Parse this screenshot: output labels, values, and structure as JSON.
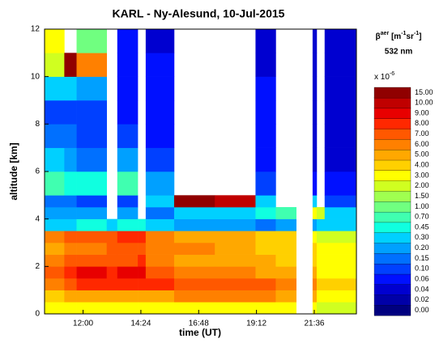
{
  "chart_data": {
    "type": "heatmap",
    "title": "KARL - Ny-Alesund, 10-Jul-2015",
    "xlabel": "time (UT)",
    "ylabel": "altitude [km]",
    "xlim": [
      10.4,
      23.35
    ],
    "ylim": [
      0,
      12
    ],
    "xticks": [
      {
        "value": 12,
        "label": "12:00"
      },
      {
        "value": 14.4,
        "label": "14:24"
      },
      {
        "value": 16.8,
        "label": "16:48"
      },
      {
        "value": 19.2,
        "label": "19:12"
      },
      {
        "value": 21.6,
        "label": "21:36"
      }
    ],
    "yticks": [
      0,
      2,
      4,
      6,
      8,
      10,
      12
    ],
    "x_edges": [
      10.4,
      11.22,
      11.73,
      12.98,
      13.42,
      14.27,
      14.6,
      15.78,
      17.47,
      19.16,
      20.0,
      20.85,
      21.53,
      21.7,
      22.03,
      23.35
    ],
    "y_edges": [
      0,
      0.5,
      1,
      1.5,
      2,
      2.5,
      3,
      3.5,
      4,
      4.5,
      5,
      6,
      7,
      8,
      9,
      10,
      11,
      12
    ],
    "values": [
      [
        3,
        4,
        6,
        7,
        6,
        5,
        6,
        0.3,
        0.2,
        0.15,
        0.7,
        0.3,
        0.15,
        0.1,
        0.3,
        2,
        3
      ],
      [
        3,
        5,
        7,
        8,
        7,
        6,
        7,
        0.3,
        0.2,
        0.15,
        0.45,
        0.2,
        0.15,
        0.1,
        0.3,
        15,
        null
      ],
      [
        3,
        5,
        8,
        9,
        7,
        6,
        7,
        0.45,
        0.2,
        0.1,
        0.45,
        0.15,
        0.1,
        0.1,
        0.2,
        6,
        1
      ],
      [
        3,
        5,
        8,
        8,
        7,
        7,
        7,
        0.3,
        null,
        null,
        null,
        null,
        null,
        null,
        null,
        null,
        null
      ],
      [
        3,
        5,
        8,
        9,
        7,
        7,
        8,
        0.45,
        0.2,
        0.1,
        0.7,
        0.2,
        0.1,
        0.06,
        0.06,
        0.06,
        0.06
      ],
      [
        3,
        5,
        8,
        9,
        8,
        7,
        8,
        0.45,
        null,
        null,
        null,
        null,
        null,
        null,
        null,
        null,
        null
      ],
      [
        3,
        5,
        8,
        7,
        6,
        6,
        6,
        0.3,
        0.15,
        0.3,
        0.2,
        0.1,
        0.06,
        0.06,
        0.06,
        0.06,
        0.04
      ],
      [
        3,
        6,
        7,
        6,
        5,
        6,
        5,
        0.2,
        0.3,
        15,
        null,
        null,
        null,
        null,
        null,
        null,
        null
      ],
      [
        3,
        6,
        7,
        6,
        5,
        5,
        5,
        0.2,
        0.3,
        10,
        null,
        null,
        null,
        null,
        null,
        null,
        null
      ],
      [
        3,
        6,
        7,
        5,
        5,
        4,
        4,
        0.15,
        0.45,
        0.3,
        0.1,
        0.06,
        0.06,
        0.06,
        0.06,
        0.04,
        0.04
      ],
      [
        3,
        5,
        6,
        5,
        4,
        4,
        4,
        0.2,
        0.7,
        null,
        null,
        null,
        null,
        null,
        null,
        null,
        null
      ],
      [
        null,
        null,
        null,
        null,
        null,
        null,
        null,
        null,
        null,
        null,
        null,
        null,
        null,
        null,
        null,
        null,
        null
      ],
      [
        3,
        5,
        6,
        5,
        4,
        4,
        3,
        0.2,
        3,
        0.3,
        0.06,
        0.04,
        0.04,
        0.04,
        0.04,
        0.04,
        0.04
      ],
      [
        2,
        3,
        4,
        3,
        3,
        3,
        2,
        0.3,
        2,
        null,
        null,
        null,
        null,
        null,
        null,
        null,
        null
      ],
      [
        2,
        3,
        4,
        3,
        3,
        3,
        2,
        0.3,
        0.3,
        0.1,
        0.06,
        0.04,
        0.04,
        0.04,
        0.04,
        0.04,
        0.04
      ]
    ],
    "colorbar_title": [
      {
        "text": "β",
        "sup": false
      },
      {
        "text": "aer",
        "sup": true
      },
      {
        "text": " [m",
        "sup": false
      },
      {
        "text": "-1",
        "sup": true
      },
      {
        "text": "sr",
        "sup": false
      },
      {
        "text": "-1",
        "sup": true
      },
      {
        "text": "]",
        "sup": false
      }
    ],
    "colorbar_subtitle": "532 nm",
    "colorbar_multiplier": [
      {
        "text": "x 10",
        "sup": false
      },
      {
        "text": "-6",
        "sup": true
      }
    ],
    "levels": [
      {
        "value": 0,
        "label": "0.00"
      },
      {
        "value": 0.02,
        "label": "0.02"
      },
      {
        "value": 0.04,
        "label": "0.04"
      },
      {
        "value": 0.06,
        "label": "0.06"
      },
      {
        "value": 0.1,
        "label": "0.10"
      },
      {
        "value": 0.15,
        "label": "0.15"
      },
      {
        "value": 0.2,
        "label": "0.20"
      },
      {
        "value": 0.3,
        "label": "0.30"
      },
      {
        "value": 0.45,
        "label": "0.45"
      },
      {
        "value": 0.7,
        "label": "0.70"
      },
      {
        "value": 1,
        "label": "1.00"
      },
      {
        "value": 1.5,
        "label": "1.50"
      },
      {
        "value": 2,
        "label": "2.00"
      },
      {
        "value": 3,
        "label": "3.00"
      },
      {
        "value": 4,
        "label": "4.00"
      },
      {
        "value": 5,
        "label": "5.00"
      },
      {
        "value": 6,
        "label": "6.00"
      },
      {
        "value": 7,
        "label": "7.00"
      },
      {
        "value": 8,
        "label": "8.00"
      },
      {
        "value": 9,
        "label": "9.00"
      },
      {
        "value": 10,
        "label": "10.00"
      },
      {
        "value": 15,
        "label": "15.00"
      }
    ],
    "colors": [
      "#00007f",
      "#0000a8",
      "#0000d0",
      "#0010ff",
      "#0040ff",
      "#0070ff",
      "#00a0ff",
      "#00d0ff",
      "#10ffe0",
      "#40ffb0",
      "#70ff80",
      "#a0ff50",
      "#d0ff20",
      "#ffff00",
      "#ffd000",
      "#ffa800",
      "#ff8000",
      "#ff5800",
      "#ff2800",
      "#e80000",
      "#c00000",
      "#900000"
    ]
  }
}
